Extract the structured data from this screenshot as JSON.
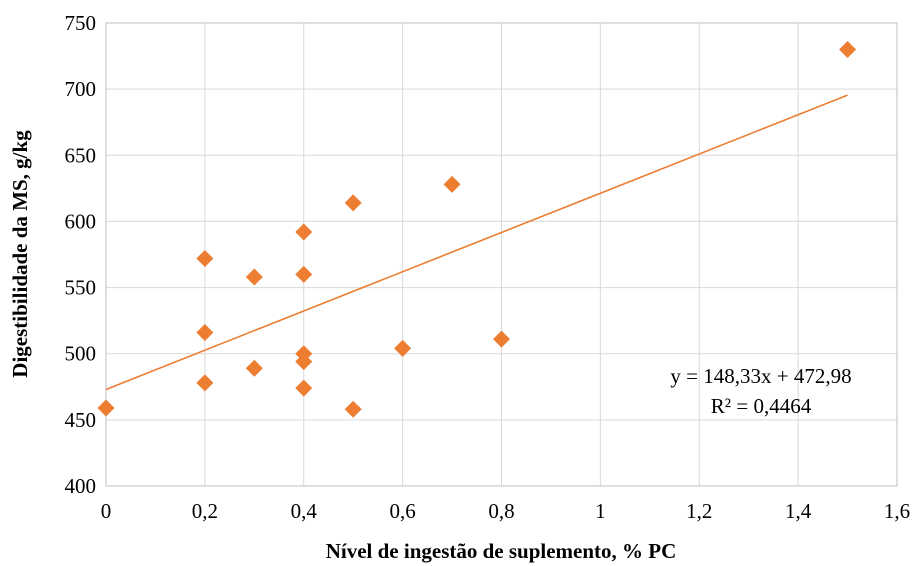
{
  "chart_data": {
    "type": "scatter",
    "title": "",
    "xlabel": "Nível de ingestão de suplemento, % PC",
    "ylabel": "Digestibilidade da MS, g/kg",
    "xlim": [
      0,
      1.6
    ],
    "ylim": [
      400,
      750
    ],
    "x_ticks": [
      0,
      0.2,
      0.4,
      0.6,
      0.8,
      1.0,
      1.2,
      1.4,
      1.6
    ],
    "x_tick_labels": [
      "0",
      "0,2",
      "0,4",
      "0,6",
      "0,8",
      "1",
      "1,2",
      "1,4",
      "1,6"
    ],
    "y_ticks": [
      400,
      450,
      500,
      550,
      600,
      650,
      700,
      750
    ],
    "y_tick_labels": [
      "400",
      "450",
      "500",
      "550",
      "600",
      "650",
      "700",
      "750"
    ],
    "grid": true,
    "marker": "diamond",
    "marker_color": "#ed7d31",
    "trendline_color": "#ed7d31",
    "gridline_color": "#d9d9d9",
    "points": [
      {
        "x": 0.0,
        "y": 459
      },
      {
        "x": 0.2,
        "y": 572
      },
      {
        "x": 0.2,
        "y": 516
      },
      {
        "x": 0.2,
        "y": 478
      },
      {
        "x": 0.3,
        "y": 558
      },
      {
        "x": 0.3,
        "y": 489
      },
      {
        "x": 0.4,
        "y": 592
      },
      {
        "x": 0.4,
        "y": 560
      },
      {
        "x": 0.4,
        "y": 500
      },
      {
        "x": 0.4,
        "y": 494
      },
      {
        "x": 0.4,
        "y": 474
      },
      {
        "x": 0.5,
        "y": 614
      },
      {
        "x": 0.5,
        "y": 458
      },
      {
        "x": 0.6,
        "y": 504
      },
      {
        "x": 0.7,
        "y": 628
      },
      {
        "x": 0.8,
        "y": 511
      },
      {
        "x": 1.5,
        "y": 730
      }
    ],
    "trendline": {
      "type": "linear",
      "slope": 148.33,
      "intercept": 472.98,
      "x_range": [
        0,
        1.5
      ]
    },
    "annotations": {
      "equation": "y = 148,33x + 472,98",
      "r_squared": "R² = 0,4464"
    }
  }
}
